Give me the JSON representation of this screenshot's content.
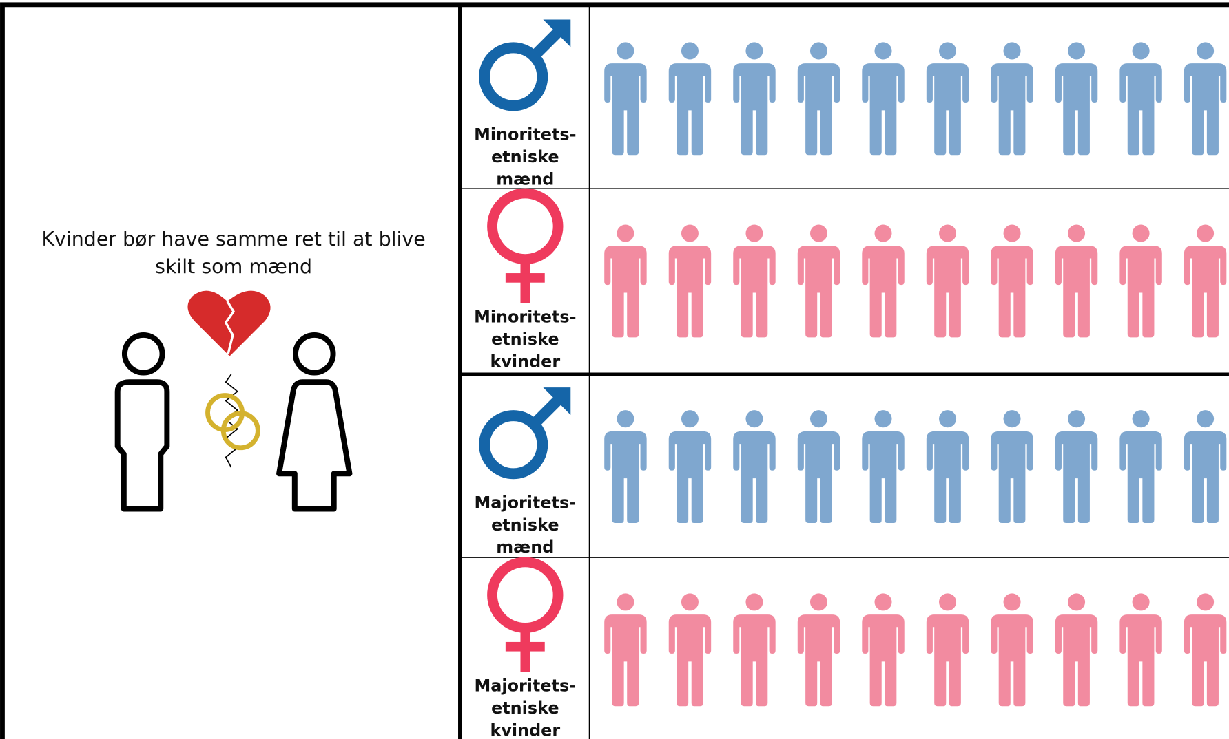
{
  "statement": [
    "Kvinder bør have samme ret til at blive",
    "skilt som mænd"
  ],
  "rows": [
    {
      "label": [
        "Minoritets-",
        "etniske",
        "mænd"
      ]
    },
    {
      "label": [
        "Minoritets-",
        "etniske",
        "kvinder"
      ]
    },
    {
      "label": [
        "Majoritets-",
        "etniske",
        "mænd"
      ]
    },
    {
      "label": [
        "Majoritets-",
        "etniske",
        "kvinder"
      ]
    }
  ]
}
